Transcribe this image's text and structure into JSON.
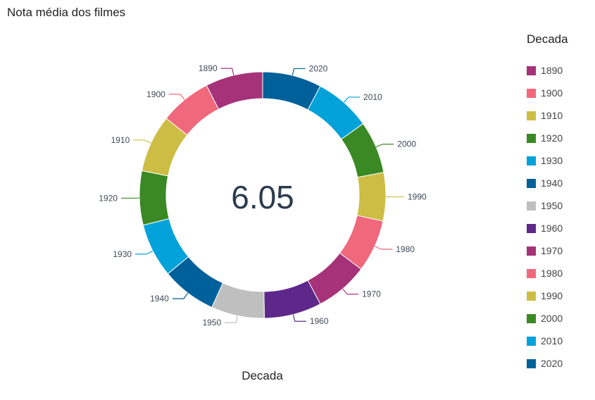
{
  "title": "Nota média dos filmes",
  "center_value": "6.05",
  "chart_data": {
    "type": "pie",
    "donut": true,
    "legend_title": "Decada",
    "xlabel": "Decada",
    "legend_position": "right",
    "categories": [
      "1890",
      "1900",
      "1910",
      "1920",
      "1930",
      "1940",
      "1950",
      "1960",
      "1970",
      "1980",
      "1990",
      "2000",
      "2010",
      "2020"
    ],
    "values": [
      6.9,
      6.2,
      6.9,
      6.5,
      6.5,
      6.6,
      6.4,
      6.9,
      6.4,
      6.3,
      5.8,
      6.3,
      6.8,
      7.1
    ],
    "colors": [
      "#A6327A",
      "#F0687C",
      "#CDBD45",
      "#3B8925",
      "#00A2D9",
      "#006099",
      "#BFBFBF",
      "#5E278A",
      "#A6327A",
      "#F0687C",
      "#CDBD45",
      "#3B8925",
      "#00A2D9",
      "#006099"
    ]
  }
}
